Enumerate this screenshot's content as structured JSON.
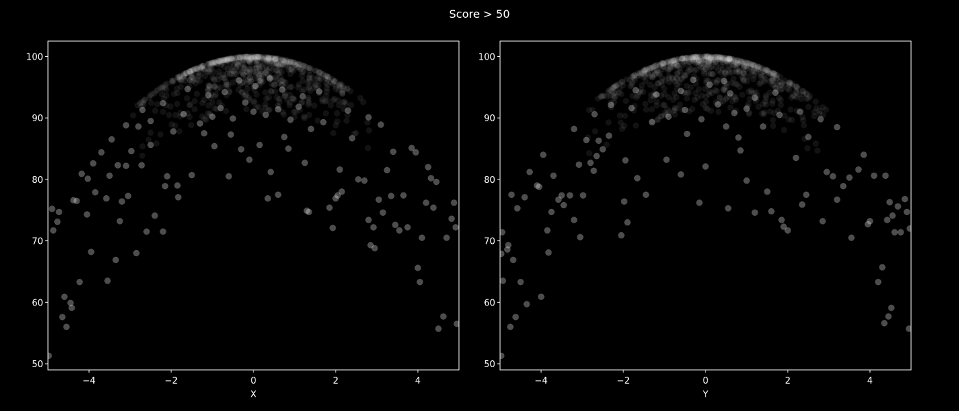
{
  "figure": {
    "suptitle": "Score > 50",
    "background": "#000000",
    "foreground": "#ffffff"
  },
  "chart_data": [
    {
      "type": "scatter",
      "xlabel": "X",
      "ylabel": "",
      "xlim": [
        -5,
        5
      ],
      "ylim": [
        49,
        102.5
      ],
      "xticks": [
        -4,
        -2,
        0,
        2,
        4
      ],
      "xtick_labels": [
        "−4",
        "−2",
        "0",
        "2",
        "4"
      ],
      "yticks": [
        50,
        60,
        70,
        80,
        90,
        100
      ],
      "ytick_labels": [
        "50",
        "60",
        "70",
        "80",
        "90",
        "100"
      ],
      "grid": false,
      "marker_color": "#ffffff",
      "marker_alpha": 0.3,
      "relationship": "score = 100 - x^2 - noise; only points with score > 50 are shown",
      "points": [
        [
          -4.98,
          51.3
        ],
        [
          -4.9,
          75.2
        ],
        [
          -4.87,
          71.7
        ],
        [
          -4.77,
          73.1
        ],
        [
          -4.73,
          74.7
        ],
        [
          -4.65,
          57.6
        ],
        [
          -4.6,
          60.9
        ],
        [
          -4.55,
          56.0
        ],
        [
          -4.45,
          59.9
        ],
        [
          -4.42,
          59.1
        ],
        [
          -4.38,
          76.6
        ],
        [
          -4.3,
          76.5
        ],
        [
          -4.23,
          63.3
        ],
        [
          -4.18,
          80.9
        ],
        [
          -4.05,
          74.3
        ],
        [
          -4.03,
          80.1
        ],
        [
          -3.95,
          68.2
        ],
        [
          -3.9,
          82.6
        ],
        [
          -3.85,
          77.9
        ],
        [
          -3.7,
          84.4
        ],
        [
          -3.58,
          76.9
        ],
        [
          -3.55,
          63.5
        ],
        [
          -3.5,
          80.6
        ],
        [
          -3.45,
          86.5
        ],
        [
          -3.35,
          66.9
        ],
        [
          -3.3,
          82.3
        ],
        [
          -3.25,
          73.2
        ],
        [
          -3.2,
          76.4
        ],
        [
          -3.1,
          82.2
        ],
        [
          -3.05,
          77.3
        ],
        [
          -2.97,
          84.6
        ],
        [
          -2.85,
          68.0
        ],
        [
          -2.8,
          88.6
        ],
        [
          -2.72,
          82.3
        ],
        [
          -2.6,
          71.5
        ],
        [
          -2.5,
          89.5
        ],
        [
          -2.4,
          74.1
        ],
        [
          -2.2,
          71.5
        ],
        [
          -2.15,
          78.9
        ],
        [
          -2.1,
          80.5
        ],
        [
          -1.95,
          87.8
        ],
        [
          -1.85,
          79.0
        ],
        [
          -1.83,
          77.1
        ],
        [
          -1.5,
          80.7
        ],
        [
          -1.2,
          87.5
        ],
        [
          -0.95,
          85.4
        ],
        [
          -0.6,
          80.5
        ],
        [
          -0.3,
          84.9
        ],
        [
          -0.1,
          83.2
        ],
        [
          0.15,
          85.6
        ],
        [
          0.35,
          76.9
        ],
        [
          0.42,
          81.2
        ],
        [
          0.6,
          77.5
        ],
        [
          0.85,
          85.0
        ],
        [
          1.25,
          82.7
        ],
        [
          1.3,
          74.9
        ],
        [
          1.35,
          74.7
        ],
        [
          1.85,
          75.4
        ],
        [
          1.93,
          72.1
        ],
        [
          2.0,
          76.9
        ],
        [
          2.05,
          77.4
        ],
        [
          2.1,
          81.6
        ],
        [
          2.15,
          78.0
        ],
        [
          2.55,
          80.0
        ],
        [
          2.7,
          79.8
        ],
        [
          2.8,
          73.4
        ],
        [
          2.85,
          69.3
        ],
        [
          2.92,
          72.2
        ],
        [
          2.95,
          68.8
        ],
        [
          3.05,
          76.7
        ],
        [
          3.15,
          74.6
        ],
        [
          3.25,
          81.5
        ],
        [
          3.35,
          77.3
        ],
        [
          3.4,
          84.5
        ],
        [
          3.45,
          72.6
        ],
        [
          3.55,
          71.7
        ],
        [
          3.65,
          77.4
        ],
        [
          3.75,
          72.2
        ],
        [
          3.85,
          85.1
        ],
        [
          3.95,
          84.4
        ],
        [
          4.0,
          65.6
        ],
        [
          4.05,
          63.3
        ],
        [
          4.1,
          70.5
        ],
        [
          4.2,
          76.2
        ],
        [
          4.25,
          82.0
        ],
        [
          4.32,
          80.2
        ],
        [
          4.38,
          75.4
        ],
        [
          4.45,
          79.6
        ],
        [
          4.5,
          55.7
        ],
        [
          4.62,
          57.7
        ],
        [
          4.7,
          70.5
        ],
        [
          4.82,
          73.6
        ],
        [
          4.88,
          76.2
        ],
        [
          4.92,
          72.2
        ],
        [
          4.95,
          56.5
        ],
        [
          -1.0,
          90.2
        ],
        [
          -0.8,
          91.6
        ],
        [
          -0.5,
          89.9
        ],
        [
          -0.2,
          92.5
        ],
        [
          0.0,
          91.0
        ],
        [
          0.3,
          90.5
        ],
        [
          0.6,
          91.4
        ],
        [
          0.9,
          89.7
        ],
        [
          1.1,
          91.8
        ],
        [
          -1.3,
          89.1
        ],
        [
          1.4,
          88.2
        ],
        [
          -1.7,
          90.6
        ],
        [
          1.7,
          89.3
        ],
        [
          -2.2,
          92.4
        ],
        [
          2.3,
          91.2
        ],
        [
          -2.7,
          91.3
        ],
        [
          2.8,
          90.1
        ],
        [
          -3.1,
          88.8
        ],
        [
          3.1,
          88.9
        ],
        [
          -0.7,
          94.2
        ],
        [
          0.7,
          94.6
        ],
        [
          -1.1,
          93.7
        ],
        [
          1.2,
          93.5
        ],
        [
          -1.6,
          94.7
        ],
        [
          1.6,
          94.3
        ],
        [
          0.05,
          95.2
        ],
        [
          -0.35,
          96.1
        ],
        [
          0.4,
          96.4
        ],
        [
          -2.5,
          85.6
        ],
        [
          2.4,
          86.7
        ],
        [
          -0.55,
          87.3
        ],
        [
          0.75,
          86.9
        ]
      ]
    },
    {
      "type": "scatter",
      "xlabel": "Y",
      "ylabel": "",
      "xlim": [
        -5,
        5
      ],
      "ylim": [
        49,
        102.5
      ],
      "xticks": [
        -4,
        -2,
        0,
        2,
        4
      ],
      "xtick_labels": [
        "−4",
        "−2",
        "0",
        "2",
        "4"
      ],
      "yticks": [
        50,
        60,
        70,
        80,
        90,
        100
      ],
      "ytick_labels": [
        "50",
        "60",
        "70",
        "80",
        "90",
        "100"
      ],
      "grid": false,
      "marker_color": "#ffffff",
      "marker_alpha": 0.3,
      "relationship": "score = 100 - y^2 - noise; only points with score > 50 are shown",
      "points": [
        [
          -4.97,
          51.3
        ],
        [
          -4.95,
          71.4
        ],
        [
          -4.97,
          67.9
        ],
        [
          -4.93,
          63.5
        ],
        [
          -4.82,
          68.6
        ],
        [
          -4.8,
          69.3
        ],
        [
          -4.75,
          56.0
        ],
        [
          -4.72,
          77.5
        ],
        [
          -4.68,
          66.9
        ],
        [
          -4.62,
          57.6
        ],
        [
          -4.58,
          75.3
        ],
        [
          -4.5,
          63.3
        ],
        [
          -4.4,
          77.1
        ],
        [
          -4.35,
          59.7
        ],
        [
          -4.28,
          81.2
        ],
        [
          -4.1,
          79.0
        ],
        [
          -4.05,
          78.8
        ],
        [
          -4.0,
          60.9
        ],
        [
          -3.95,
          84.0
        ],
        [
          -3.85,
          71.7
        ],
        [
          -3.82,
          68.1
        ],
        [
          -3.75,
          74.7
        ],
        [
          -3.7,
          80.6
        ],
        [
          -3.58,
          76.7
        ],
        [
          -3.5,
          77.4
        ],
        [
          -3.45,
          75.8
        ],
        [
          -3.3,
          77.4
        ],
        [
          -3.2,
          73.4
        ],
        [
          -3.08,
          82.4
        ],
        [
          -3.05,
          70.6
        ],
        [
          -2.98,
          77.4
        ],
        [
          -2.9,
          86.4
        ],
        [
          -2.8,
          82.7
        ],
        [
          -2.72,
          81.4
        ],
        [
          -2.65,
          83.8
        ],
        [
          -2.5,
          84.9
        ],
        [
          -2.35,
          87.1
        ],
        [
          -2.05,
          70.9
        ],
        [
          -1.98,
          76.4
        ],
        [
          -1.95,
          83.1
        ],
        [
          -1.9,
          73.0
        ],
        [
          -1.66,
          80.2
        ],
        [
          -1.45,
          77.5
        ],
        [
          -0.95,
          83.2
        ],
        [
          -0.6,
          80.8
        ],
        [
          -0.15,
          76.2
        ],
        [
          0.0,
          82.1
        ],
        [
          0.55,
          75.3
        ],
        [
          0.85,
          84.7
        ],
        [
          1.0,
          79.8
        ],
        [
          1.2,
          74.6
        ],
        [
          1.5,
          78.0
        ],
        [
          1.6,
          74.8
        ],
        [
          1.85,
          73.4
        ],
        [
          1.9,
          72.3
        ],
        [
          2.0,
          71.7
        ],
        [
          2.2,
          83.5
        ],
        [
          2.35,
          75.9
        ],
        [
          2.45,
          77.5
        ],
        [
          2.85,
          73.2
        ],
        [
          2.95,
          81.2
        ],
        [
          3.1,
          80.5
        ],
        [
          3.2,
          76.7
        ],
        [
          3.35,
          78.9
        ],
        [
          3.5,
          80.3
        ],
        [
          3.55,
          70.5
        ],
        [
          3.72,
          81.6
        ],
        [
          3.85,
          84.0
        ],
        [
          3.95,
          72.7
        ],
        [
          4.0,
          73.2
        ],
        [
          4.1,
          80.6
        ],
        [
          4.2,
          63.3
        ],
        [
          4.3,
          65.7
        ],
        [
          4.35,
          56.6
        ],
        [
          4.38,
          80.6
        ],
        [
          4.42,
          73.4
        ],
        [
          4.45,
          57.7
        ],
        [
          4.48,
          76.3
        ],
        [
          4.52,
          59.1
        ],
        [
          4.55,
          74.1
        ],
        [
          4.6,
          71.4
        ],
        [
          4.68,
          75.6
        ],
        [
          4.75,
          71.4
        ],
        [
          4.85,
          76.8
        ],
        [
          4.9,
          74.7
        ],
        [
          4.95,
          55.7
        ],
        [
          4.97,
          72.0
        ],
        [
          -0.9,
          90.2
        ],
        [
          -0.5,
          91.3
        ],
        [
          -0.1,
          89.8
        ],
        [
          0.3,
          92.2
        ],
        [
          0.7,
          90.8
        ],
        [
          1.0,
          91.5
        ],
        [
          -1.3,
          89.3
        ],
        [
          1.4,
          88.6
        ],
        [
          -1.8,
          91.6
        ],
        [
          1.8,
          90.5
        ],
        [
          -2.3,
          92.1
        ],
        [
          2.3,
          91.0
        ],
        [
          -2.7,
          90.6
        ],
        [
          2.8,
          89.8
        ],
        [
          -3.2,
          88.2
        ],
        [
          3.2,
          88.5
        ],
        [
          -0.6,
          94.4
        ],
        [
          0.6,
          94.0
        ],
        [
          -1.2,
          93.8
        ],
        [
          1.2,
          93.3
        ],
        [
          -1.7,
          94.5
        ],
        [
          1.7,
          94.1
        ],
        [
          0.1,
          95.4
        ],
        [
          -0.3,
          96.2
        ],
        [
          0.45,
          96.0
        ],
        [
          -2.6,
          86.3
        ],
        [
          2.5,
          86.9
        ],
        [
          -0.45,
          87.4
        ],
        [
          0.8,
          86.8
        ],
        [
          0.5,
          88.6
        ]
      ]
    }
  ]
}
